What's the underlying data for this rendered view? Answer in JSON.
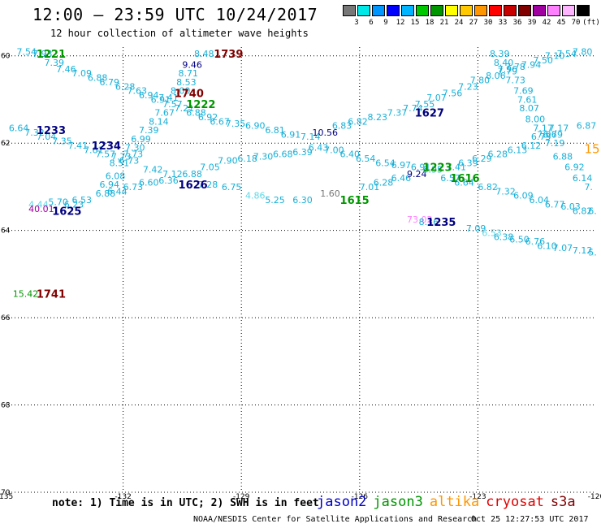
{
  "title": "12:00 – 23:59 UTC 10/24/2017",
  "subtitle": "12 hour collection of altimeter wave heights",
  "legend": {
    "unit": "(ft)",
    "colors": [
      "#777777",
      "#00e8e8",
      "#0096ff",
      "#0000ff",
      "#00b4ff",
      "#00c800",
      "#009600",
      "#ffff00",
      "#ffc800",
      "#ff9600",
      "#ff0000",
      "#c80000",
      "#800000",
      "#a000a0",
      "#ff80ff",
      "#ffb4ff",
      "#000000"
    ],
    "ticks": [
      "3",
      "6",
      "9",
      "12",
      "15",
      "18",
      "21",
      "24",
      "27",
      "30",
      "33",
      "36",
      "39",
      "42",
      "45",
      "70"
    ]
  },
  "axes": {
    "lon_labels": [
      "-135",
      "-132",
      "-129",
      "-126",
      "-123",
      "-120"
    ],
    "lat_labels": [
      "60",
      "62",
      "64",
      "66",
      "68",
      "70"
    ]
  },
  "map_data": {
    "lon_range": [
      -135,
      -120
    ],
    "lat_range": [
      70,
      59.8
    ],
    "swh_labels": [
      {
        "t": "7.54",
        "lon": -134.7,
        "lat": 59.9,
        "c": "#17b0d8"
      },
      {
        "t": "7.93",
        "lon": -134.3,
        "lat": 59.95,
        "c": "#17b0d8"
      },
      {
        "t": "7.39",
        "lon": -134.0,
        "lat": 60.15,
        "c": "#17b0d8"
      },
      {
        "t": "7.46",
        "lon": -133.7,
        "lat": 60.3,
        "c": "#17b0d8"
      },
      {
        "t": "7.09",
        "lon": -133.3,
        "lat": 60.4,
        "c": "#17b0d8"
      },
      {
        "t": "6.88",
        "lon": -132.9,
        "lat": 60.5,
        "c": "#17b0d8"
      },
      {
        "t": "6.79",
        "lon": -132.6,
        "lat": 60.6,
        "c": "#17b0d8"
      },
      {
        "t": "6.28",
        "lon": -132.2,
        "lat": 60.7,
        "c": "#17b0d8"
      },
      {
        "t": "7.63",
        "lon": -131.9,
        "lat": 60.8,
        "c": "#17b0d8"
      },
      {
        "t": "6.94",
        "lon": -131.6,
        "lat": 60.9,
        "c": "#17b0d8"
      },
      {
        "t": "6.91",
        "lon": -131.3,
        "lat": 61.0,
        "c": "#17b0d8"
      },
      {
        "t": "7.41",
        "lon": -131.1,
        "lat": 60.95,
        "c": "#17b0d8"
      },
      {
        "t": "8.00",
        "lon": -130.8,
        "lat": 60.8,
        "c": "#17b0d8"
      },
      {
        "t": "8.53",
        "lon": -130.65,
        "lat": 60.6,
        "c": "#17b0d8"
      },
      {
        "t": "8.71",
        "lon": -130.6,
        "lat": 60.4,
        "c": "#17b0d8"
      },
      {
        "t": "9.46",
        "lon": -130.5,
        "lat": 60.2,
        "c": "#000080"
      },
      {
        "t": "8.48",
        "lon": -130.2,
        "lat": 59.95,
        "c": "#17b0d8"
      },
      {
        "t": "7.57",
        "lon": -131.0,
        "lat": 61.1,
        "c": "#17b0d8"
      },
      {
        "t": "7.67",
        "lon": -131.2,
        "lat": 61.3,
        "c": "#17b0d8"
      },
      {
        "t": "8.14",
        "lon": -131.35,
        "lat": 61.5,
        "c": "#17b0d8"
      },
      {
        "t": "7.39",
        "lon": -131.6,
        "lat": 61.7,
        "c": "#17b0d8"
      },
      {
        "t": "6.99",
        "lon": -131.8,
        "lat": 61.9,
        "c": "#17b0d8"
      },
      {
        "t": "7.30",
        "lon": -131.95,
        "lat": 62.1,
        "c": "#17b0d8"
      },
      {
        "t": "7.21",
        "lon": -130.7,
        "lat": 61.2,
        "c": "#17b0d8"
      },
      {
        "t": "6.88",
        "lon": -130.4,
        "lat": 61.3,
        "c": "#17b0d8"
      },
      {
        "t": "6.92",
        "lon": -130.1,
        "lat": 61.4,
        "c": "#17b0d8"
      },
      {
        "t": "6.67",
        "lon": -129.8,
        "lat": 61.5,
        "c": "#17b0d8"
      },
      {
        "t": "7.35",
        "lon": -129.4,
        "lat": 61.55,
        "c": "#17b0d8"
      },
      {
        "t": "6.90",
        "lon": -128.9,
        "lat": 61.6,
        "c": "#17b0d8"
      },
      {
        "t": "6.81",
        "lon": -128.4,
        "lat": 61.7,
        "c": "#17b0d8"
      },
      {
        "t": "6.91",
        "lon": -128.0,
        "lat": 61.8,
        "c": "#17b0d8"
      },
      {
        "t": "7.14",
        "lon": -127.5,
        "lat": 61.85,
        "c": "#17b0d8"
      },
      {
        "t": "10.56",
        "lon": -127.2,
        "lat": 61.75,
        "c": "#000080"
      },
      {
        "t": "6.83",
        "lon": -126.7,
        "lat": 61.6,
        "c": "#17b0d8"
      },
      {
        "t": "6.82",
        "lon": -126.3,
        "lat": 61.5,
        "c": "#17b0d8"
      },
      {
        "t": "8.23",
        "lon": -125.8,
        "lat": 61.4,
        "c": "#17b0d8"
      },
      {
        "t": "7.37",
        "lon": -125.3,
        "lat": 61.3,
        "c": "#17b0d8"
      },
      {
        "t": "7.74",
        "lon": -124.9,
        "lat": 61.2,
        "c": "#17b0d8"
      },
      {
        "t": "7.55",
        "lon": -124.6,
        "lat": 61.1,
        "c": "#17b0d8"
      },
      {
        "t": "7.07",
        "lon": -124.3,
        "lat": 60.95,
        "c": "#17b0d8"
      },
      {
        "t": "7.56",
        "lon": -123.9,
        "lat": 60.85,
        "c": "#17b0d8"
      },
      {
        "t": "7.23",
        "lon": -123.5,
        "lat": 60.7,
        "c": "#17b0d8"
      },
      {
        "t": "7.80",
        "lon": -123.2,
        "lat": 60.55,
        "c": "#17b0d8"
      },
      {
        "t": "8.06",
        "lon": -122.8,
        "lat": 60.45,
        "c": "#17b0d8"
      },
      {
        "t": "7.79",
        "lon": -122.5,
        "lat": 60.35,
        "c": "#17b0d8"
      },
      {
        "t": "7.78",
        "lon": -122.3,
        "lat": 60.25,
        "c": "#17b0d8"
      },
      {
        "t": "7.94",
        "lon": -121.9,
        "lat": 60.2,
        "c": "#17b0d8"
      },
      {
        "t": "7.50",
        "lon": -121.6,
        "lat": 60.1,
        "c": "#17b0d8"
      },
      {
        "t": "7.10",
        "lon": -121.3,
        "lat": 60.0,
        "c": "#17b0d8"
      },
      {
        "t": "7.54",
        "lon": -121.0,
        "lat": 59.95,
        "c": "#17b0d8"
      },
      {
        "t": "7.80",
        "lon": -120.6,
        "lat": 59.9,
        "c": "#17b0d8"
      },
      {
        "t": "8.39",
        "lon": -122.7,
        "lat": 59.95,
        "c": "#17b0d8"
      },
      {
        "t": "8.40",
        "lon": -122.6,
        "lat": 60.15,
        "c": "#17b0d8"
      },
      {
        "t": "7.96",
        "lon": -122.5,
        "lat": 60.3,
        "c": "#17b0d8"
      },
      {
        "t": "7.73",
        "lon": -122.3,
        "lat": 60.55,
        "c": "#17b0d8"
      },
      {
        "t": "7.69",
        "lon": -122.1,
        "lat": 60.8,
        "c": "#17b0d8"
      },
      {
        "t": "7.61",
        "lon": -122.0,
        "lat": 61.0,
        "c": "#17b0d8"
      },
      {
        "t": "8.07",
        "lon": -121.95,
        "lat": 61.2,
        "c": "#17b0d8"
      },
      {
        "t": "8.00",
        "lon": -121.8,
        "lat": 61.45,
        "c": "#17b0d8"
      },
      {
        "t": "7.17",
        "lon": -121.6,
        "lat": 61.65,
        "c": "#17b0d8"
      },
      {
        "t": "7.17",
        "lon": -121.2,
        "lat": 61.65,
        "c": "#17b0d8"
      },
      {
        "t": "7.06",
        "lon": -121.5,
        "lat": 61.8,
        "c": "#17b0d8"
      },
      {
        "t": "7.19",
        "lon": -121.3,
        "lat": 62.0,
        "c": "#17b0d8"
      },
      {
        "t": "6.87",
        "lon": -120.5,
        "lat": 61.6,
        "c": "#17b0d8"
      },
      {
        "t": "6.88",
        "lon": -121.1,
        "lat": 62.3,
        "c": "#17b0d8"
      },
      {
        "t": "6.92",
        "lon": -120.8,
        "lat": 62.55,
        "c": "#17b0d8"
      },
      {
        "t": "6.14",
        "lon": -120.6,
        "lat": 62.8,
        "c": "#17b0d8"
      },
      {
        "t": "7.",
        "lon": -120.3,
        "lat": 63.0,
        "c": "#17b0d8"
      },
      {
        "t": "6.64",
        "lon": -134.9,
        "lat": 61.65,
        "c": "#17b0d8"
      },
      {
        "t": "7.32",
        "lon": -134.5,
        "lat": 61.75,
        "c": "#17b0d8"
      },
      {
        "t": "7.04",
        "lon": -134.2,
        "lat": 61.85,
        "c": "#17b0d8"
      },
      {
        "t": "7.35",
        "lon": -133.8,
        "lat": 61.95,
        "c": "#17b0d8"
      },
      {
        "t": "7.41",
        "lon": -133.4,
        "lat": 62.05,
        "c": "#17b0d8"
      },
      {
        "t": "7.61",
        "lon": -133.0,
        "lat": 62.15,
        "c": "#17b0d8"
      },
      {
        "t": "7.57",
        "lon": -132.7,
        "lat": 62.25,
        "c": "#17b0d8"
      },
      {
        "t": "7.73",
        "lon": -132.3,
        "lat": 62.3,
        "c": "#17b0d8"
      },
      {
        "t": "7.73",
        "lon": -132.0,
        "lat": 62.25,
        "c": "#17b0d8"
      },
      {
        "t": "8.51",
        "lon": -132.35,
        "lat": 62.45,
        "c": "#17b0d8"
      },
      {
        "t": "6.73",
        "lon": -132.1,
        "lat": 62.4,
        "c": "#17b0d8"
      },
      {
        "t": "6.08",
        "lon": -132.45,
        "lat": 62.75,
        "c": "#17b0d8"
      },
      {
        "t": "6.94",
        "lon": -132.6,
        "lat": 62.95,
        "c": "#17b0d8"
      },
      {
        "t": "6.88",
        "lon": -132.7,
        "lat": 63.15,
        "c": "#17b0d8"
      },
      {
        "t": "6.44",
        "lon": -132.4,
        "lat": 63.1,
        "c": "#17b0d8"
      },
      {
        "t": "6.73",
        "lon": -132.0,
        "lat": 63.0,
        "c": "#17b0d8"
      },
      {
        "t": "6.60",
        "lon": -131.6,
        "lat": 62.9,
        "c": "#17b0d8"
      },
      {
        "t": "7.42",
        "lon": -131.5,
        "lat": 62.6,
        "c": "#17b0d8"
      },
      {
        "t": "7.12",
        "lon": -131.0,
        "lat": 62.7,
        "c": "#17b0d8"
      },
      {
        "t": "6.36",
        "lon": -131.1,
        "lat": 62.85,
        "c": "#17b0d8"
      },
      {
        "t": "6.88",
        "lon": -130.5,
        "lat": 62.7,
        "c": "#17b0d8"
      },
      {
        "t": "7.05",
        "lon": -130.05,
        "lat": 62.55,
        "c": "#17b0d8"
      },
      {
        "t": "7.90",
        "lon": -129.6,
        "lat": 62.4,
        "c": "#17b0d8"
      },
      {
        "t": "6.18",
        "lon": -129.1,
        "lat": 62.35,
        "c": "#17b0d8"
      },
      {
        "t": "7.30",
        "lon": -128.7,
        "lat": 62.3,
        "c": "#17b0d8"
      },
      {
        "t": "6.68",
        "lon": -128.2,
        "lat": 62.25,
        "c": "#17b0d8"
      },
      {
        "t": "6.39",
        "lon": -127.7,
        "lat": 62.2,
        "c": "#17b0d8"
      },
      {
        "t": "6.43",
        "lon": -127.3,
        "lat": 62.1,
        "c": "#17b0d8"
      },
      {
        "t": "7.00",
        "lon": -126.9,
        "lat": 62.15,
        "c": "#17b0d8"
      },
      {
        "t": "6.40",
        "lon": -126.5,
        "lat": 62.25,
        "c": "#17b0d8"
      },
      {
        "t": "6.54",
        "lon": -126.1,
        "lat": 62.35,
        "c": "#17b0d8"
      },
      {
        "t": "6.54",
        "lon": -125.6,
        "lat": 62.45,
        "c": "#17b0d8"
      },
      {
        "t": "6.97",
        "lon": -125.2,
        "lat": 62.5,
        "c": "#17b0d8"
      },
      {
        "t": "6.91",
        "lon": -124.7,
        "lat": 62.55,
        "c": "#17b0d8"
      },
      {
        "t": "7.41",
        "lon": -123.8,
        "lat": 62.55,
        "c": "#17b0d8"
      },
      {
        "t": "6.39",
        "lon": -123.5,
        "lat": 62.45,
        "c": "#17b0d8"
      },
      {
        "t": "6.29",
        "lon": -123.15,
        "lat": 62.35,
        "c": "#17b0d8"
      },
      {
        "t": "6.28",
        "lon": -122.75,
        "lat": 62.25,
        "c": "#17b0d8"
      },
      {
        "t": "6.13",
        "lon": -122.25,
        "lat": 62.15,
        "c": "#17b0d8"
      },
      {
        "t": "6.12",
        "lon": -121.9,
        "lat": 62.05,
        "c": "#17b0d8"
      },
      {
        "t": "6.73",
        "lon": -121.65,
        "lat": 61.85,
        "c": "#17b0d8"
      },
      {
        "t": "6.79",
        "lon": -121.35,
        "lat": 61.8,
        "c": "#17b0d8"
      },
      {
        "t": "7.28",
        "lon": -130.1,
        "lat": 62.95,
        "c": "#17b0d8"
      },
      {
        "t": "6.75",
        "lon": -129.5,
        "lat": 63.0,
        "c": "#17b0d8"
      },
      {
        "t": "4.86",
        "lon": -128.9,
        "lat": 63.2,
        "c": "#5cd9e8"
      },
      {
        "t": "5.25",
        "lon": -128.4,
        "lat": 63.3,
        "c": "#17b0d8"
      },
      {
        "t": "6.30",
        "lon": -127.7,
        "lat": 63.3,
        "c": "#17b0d8"
      },
      {
        "t": "1.60",
        "lon": -127.0,
        "lat": 63.15,
        "c": "#777777"
      },
      {
        "t": "7.01",
        "lon": -126.0,
        "lat": 63.0,
        "c": "#17b0d8"
      },
      {
        "t": "6.28",
        "lon": -125.65,
        "lat": 62.9,
        "c": "#17b0d8"
      },
      {
        "t": "6.46",
        "lon": -125.2,
        "lat": 62.8,
        "c": "#17b0d8"
      },
      {
        "t": "9.24",
        "lon": -124.8,
        "lat": 62.7,
        "c": "#000080"
      },
      {
        "t": "6.95",
        "lon": -124.4,
        "lat": 62.6,
        "c": "#17b0d8"
      },
      {
        "t": "6.57",
        "lon": -123.95,
        "lat": 62.8,
        "c": "#17b0d8"
      },
      {
        "t": "6.64",
        "lon": -123.6,
        "lat": 62.9,
        "c": "#17b0d8"
      },
      {
        "t": "6.82",
        "lon": -123.0,
        "lat": 63.0,
        "c": "#17b0d8"
      },
      {
        "t": "7.32",
        "lon": -122.55,
        "lat": 63.1,
        "c": "#17b0d8"
      },
      {
        "t": "6.09",
        "lon": -122.1,
        "lat": 63.2,
        "c": "#17b0d8"
      },
      {
        "t": "6.04",
        "lon": -121.7,
        "lat": 63.3,
        "c": "#17b0d8"
      },
      {
        "t": "6.77",
        "lon": -121.3,
        "lat": 63.4,
        "c": "#17b0d8"
      },
      {
        "t": "6.03",
        "lon": -120.9,
        "lat": 63.45,
        "c": "#17b0d8"
      },
      {
        "t": "6.82",
        "lon": -120.6,
        "lat": 63.55,
        "c": "#17b0d8"
      },
      {
        "t": "6.",
        "lon": -120.2,
        "lat": 63.55,
        "c": "#17b0d8"
      },
      {
        "t": "4.44",
        "lon": -134.4,
        "lat": 63.4,
        "c": "#5cd9e8"
      },
      {
        "t": "5.70",
        "lon": -133.9,
        "lat": 63.35,
        "c": "#17b0d8"
      },
      {
        "t": "6.23",
        "lon": -133.5,
        "lat": 63.4,
        "c": "#17b0d8"
      },
      {
        "t": "6.53",
        "lon": -133.3,
        "lat": 63.3,
        "c": "#17b0d8"
      },
      {
        "t": "40.01",
        "lon": -134.4,
        "lat": 63.5,
        "c": "#a000a0"
      },
      {
        "t": "73.02",
        "lon": -124.8,
        "lat": 63.75,
        "c": "#ff80ff"
      },
      {
        "t": "8.36",
        "lon": -124.5,
        "lat": 63.8,
        "c": "#17b0d8"
      },
      {
        "t": "7.09",
        "lon": -123.3,
        "lat": 63.95,
        "c": "#17b0d8"
      },
      {
        "t": "6.53",
        "lon": -122.9,
        "lat": 64.05,
        "c": "#5cd9e8"
      },
      {
        "t": "6.38",
        "lon": -122.6,
        "lat": 64.15,
        "c": "#17b0d8"
      },
      {
        "t": "6.50",
        "lon": -122.2,
        "lat": 64.2,
        "c": "#17b0d8"
      },
      {
        "t": "6.76",
        "lon": -121.8,
        "lat": 64.25,
        "c": "#17b0d8"
      },
      {
        "t": "6.10",
        "lon": -121.5,
        "lat": 64.35,
        "c": "#17b0d8"
      },
      {
        "t": "7.07",
        "lon": -121.1,
        "lat": 64.4,
        "c": "#17b0d8"
      },
      {
        "t": "7.12",
        "lon": -120.6,
        "lat": 64.45,
        "c": "#17b0d8"
      },
      {
        "t": "5.",
        "lon": -120.2,
        "lat": 64.5,
        "c": "#17b0d8"
      },
      {
        "t": "15.42",
        "lon": -134.8,
        "lat": 65.45,
        "c": "#009600"
      },
      {
        "t": "15",
        "lon": -120.3,
        "lat": 62.15,
        "c": "#ff9600",
        "size": 15
      }
    ],
    "time_labels": [
      {
        "t": "1221",
        "lon": -134.2,
        "lat": 59.95,
        "c": "#009600"
      },
      {
        "t": "1739",
        "lon": -129.7,
        "lat": 59.95,
        "c": "#800000"
      },
      {
        "t": "1740",
        "lon": -130.7,
        "lat": 60.85,
        "c": "#800000"
      },
      {
        "t": "1222",
        "lon": -130.4,
        "lat": 61.1,
        "c": "#009600"
      },
      {
        "t": "1233",
        "lon": -134.2,
        "lat": 61.7,
        "c": "#000080"
      },
      {
        "t": "1234",
        "lon": -132.8,
        "lat": 62.05,
        "c": "#000080"
      },
      {
        "t": "1626",
        "lon": -130.6,
        "lat": 62.95,
        "c": "#000080"
      },
      {
        "t": "1625",
        "lon": -133.8,
        "lat": 63.55,
        "c": "#000080"
      },
      {
        "t": "1627",
        "lon": -124.6,
        "lat": 61.3,
        "c": "#000080"
      },
      {
        "t": "1223",
        "lon": -124.4,
        "lat": 62.55,
        "c": "#009600"
      },
      {
        "t": "1616",
        "lon": -123.7,
        "lat": 62.8,
        "c": "#009600"
      },
      {
        "t": "1615",
        "lon": -126.5,
        "lat": 63.3,
        "c": "#009600"
      },
      {
        "t": "1235",
        "lon": -124.3,
        "lat": 63.8,
        "c": "#000080"
      },
      {
        "t": "1741",
        "lon": -134.2,
        "lat": 65.45,
        "c": "#800000"
      }
    ]
  },
  "note": "note: 1) Time is in UTC; 2) SWH is in feet",
  "satellites": [
    {
      "name": "jason2",
      "color": "#0000c8"
    },
    {
      "name": "jason3",
      "color": "#009600"
    },
    {
      "name": "altika",
      "color": "#ff9600"
    },
    {
      "name": "cryosat",
      "color": "#e00000"
    },
    {
      "name": "s3a",
      "color": "#800000"
    }
  ],
  "credit": "NOAA/NESDIS Center for Satellite Applications and Research",
  "timestamp": "Oct 25 12:27:53 UTC 2017"
}
